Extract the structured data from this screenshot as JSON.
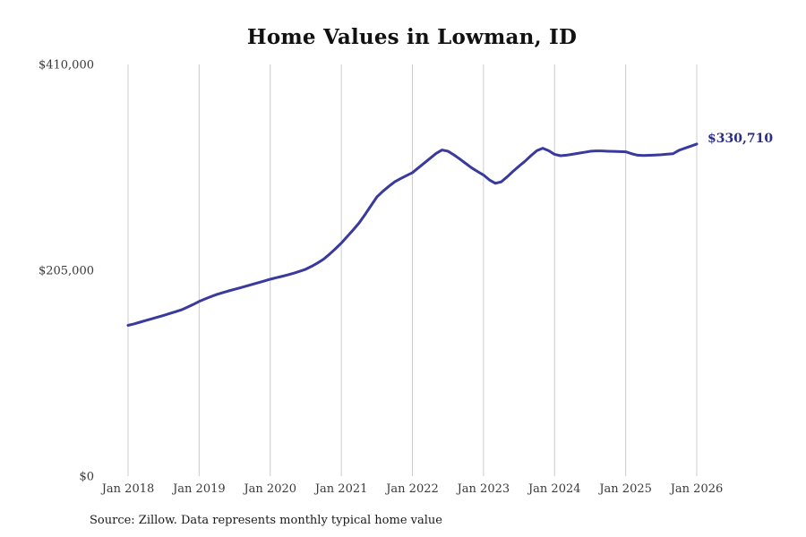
{
  "header": {
    "title": "Home Values in Lowman, ID"
  },
  "annotation": {
    "end_value_label": "$330,710"
  },
  "footer": {
    "source_note": "Source: Zillow. Data represents monthly typical home value"
  },
  "colors": {
    "line": "#39399E",
    "annotation": "#2B2D87",
    "grid": "#CCCCCC",
    "axis_text": "#3A3A3A",
    "title_text": "#111111",
    "source_text": "#1A1A1A",
    "background": "#FFFFFF"
  },
  "chart_data": {
    "type": "line",
    "title": "Home Values in Lowman, ID",
    "xlabel": "",
    "ylabel": "",
    "x_tick_labels": [
      "Jan 2018",
      "Jan 2019",
      "Jan 2020",
      "Jan 2021",
      "Jan 2022",
      "Jan 2023",
      "Jan 2024",
      "Jan 2025",
      "Jan 2026"
    ],
    "y_tick_labels": [
      "$0",
      "$205,000",
      "$410,000"
    ],
    "y_tick_values": [
      0,
      205000,
      410000
    ],
    "ylim": [
      0,
      410000
    ],
    "grid": "vertical-only",
    "legend": "none",
    "frequency": "monthly",
    "x_start": "Jan 2018",
    "x_end": "Jan 2026",
    "end_value": 330710,
    "series": [
      {
        "name": "Monthly typical home value",
        "values": [
          150200,
          151600,
          153300,
          155000,
          156700,
          158400,
          160100,
          161900,
          163700,
          165600,
          168200,
          171000,
          174000,
          176500,
          178800,
          181000,
          182800,
          184500,
          186100,
          187700,
          189300,
          191000,
          192700,
          194400,
          196100,
          197600,
          199000,
          200500,
          202200,
          204100,
          206100,
          209000,
          212300,
          216000,
          221000,
          226400,
          232100,
          238600,
          245200,
          252100,
          260500,
          269300,
          278000,
          283600,
          288500,
          293100,
          296300,
          299300,
          302200,
          307000,
          311800,
          316600,
          321400,
          324800,
          323600,
          320000,
          315800,
          311400,
          307000,
          303400,
          299900,
          295000,
          291600,
          293100,
          298100,
          303600,
          308700,
          313600,
          319100,
          324100,
          326600,
          324100,
          320500,
          319100,
          319600,
          320500,
          321500,
          322500,
          323500,
          323900,
          323900,
          323600,
          323400,
          323200,
          323000,
          321100,
          319600,
          319300,
          319500,
          319800,
          320100,
          320600,
          321100,
          324500,
          326600,
          328600,
          330710
        ]
      }
    ]
  }
}
